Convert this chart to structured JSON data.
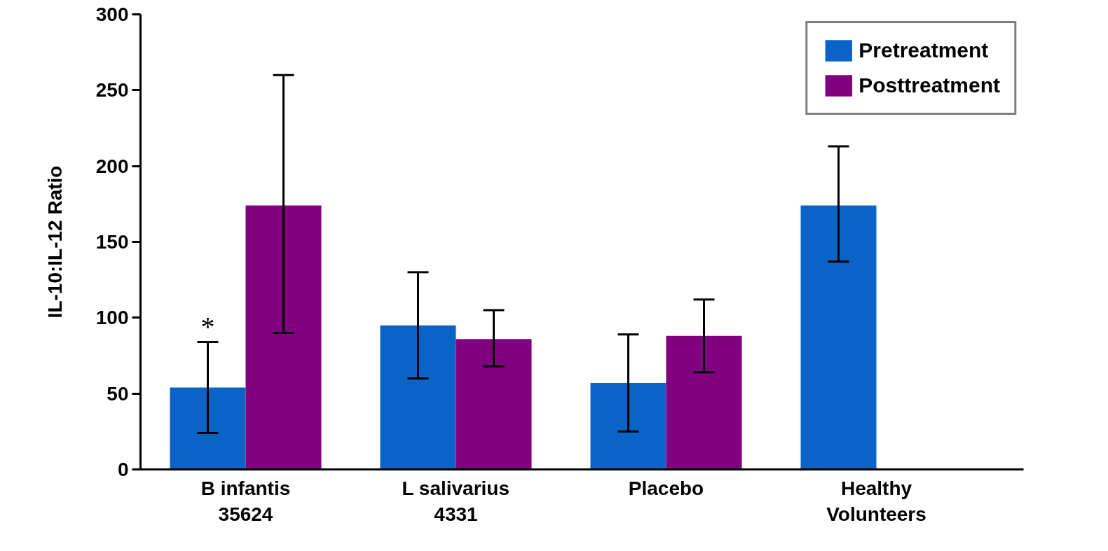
{
  "chart_data": {
    "type": "bar",
    "ylabel": "IL-10:IL-12 Ratio",
    "categories": [
      "B infantis\n35624",
      "L salivarius\n4331",
      "Placebo",
      "Healthy\nVolunteers"
    ],
    "series": [
      {
        "name": "Pretreatment",
        "color": "#0a64c8",
        "values": [
          54,
          95,
          57,
          174
        ],
        "errors": [
          [
            24,
            84
          ],
          [
            60,
            130
          ],
          [
            25,
            89
          ],
          [
            137,
            213
          ]
        ]
      },
      {
        "name": "Posttreatment",
        "color": "#800080",
        "values": [
          174,
          86,
          88,
          null
        ],
        "errors": [
          [
            90,
            260
          ],
          [
            68,
            105
          ],
          [
            64,
            112
          ],
          null
        ]
      }
    ],
    "ylim": [
      0,
      300
    ],
    "yticks": [
      0,
      50,
      100,
      150,
      200,
      250,
      300
    ],
    "annotations": [
      {
        "text": "*",
        "x": "B infantis\n35624",
        "y": 84
      }
    ],
    "legend": "top right",
    "grid": false
  }
}
